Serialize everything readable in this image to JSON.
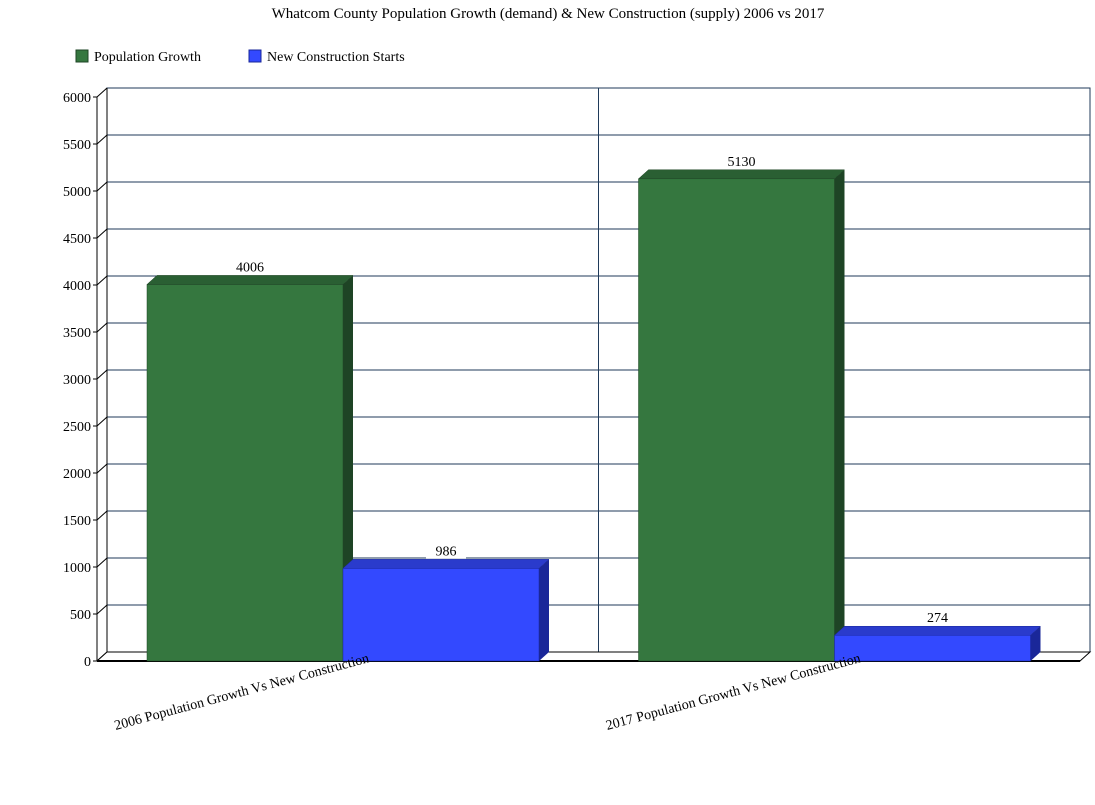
{
  "chart_data": {
    "type": "bar",
    "title": "Whatcom County Population Growth (demand) & New Construction (supply) 2006 vs 2017",
    "categories": [
      "2006 Population Growth Vs New Construction",
      "2017 Population Growth Vs New Construction"
    ],
    "series": [
      {
        "name": "Population Growth",
        "values": [
          4006,
          5130
        ],
        "color": "#35773f",
        "side_color": "#1e4425",
        "top_color": "#2a5f33"
      },
      {
        "name": "New Construction Starts",
        "values": [
          986,
          274
        ],
        "color": "#3349ff",
        "side_color": "#1a2799",
        "top_color": "#2a3bcc"
      }
    ],
    "ylim": [
      0,
      6000
    ],
    "yticks": [
      0,
      500,
      1000,
      1500,
      2000,
      2500,
      3000,
      3500,
      4000,
      4500,
      5000,
      5500,
      6000
    ],
    "grid": true,
    "legend": "top-left",
    "gridline_color": "#1f3a5a"
  }
}
